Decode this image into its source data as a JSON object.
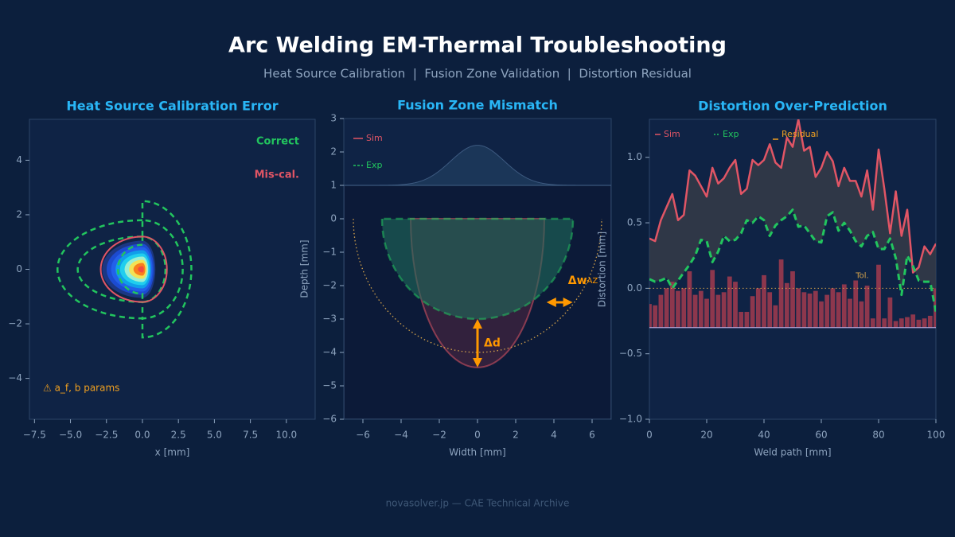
{
  "title": "Arc Welding EM-Thermal Troubleshooting",
  "subtitle": "Heat Source Calibration  |  Fusion Zone Validation  |  Distortion Residual",
  "footer": "novasolver.jp  —  CAE Technical Archive",
  "chart_data": [
    {
      "type": "contour",
      "title": "Heat Source Calibration Error",
      "xlabel": "x [mm]",
      "xlim": [
        -7.85,
        12
      ],
      "ylim": [
        -5.5,
        5.5
      ],
      "xticks": [
        {
          "value": -7.5,
          "label": "−7.5"
        },
        {
          "value": -5,
          "label": "−5.0"
        },
        {
          "value": -2.5,
          "label": "−2.5"
        },
        {
          "value": 0,
          "label": "0.0"
        },
        2.5,
        {
          "value": 5,
          "label": "5.0"
        },
        7.5,
        {
          "value": 10,
          "label": "10.0"
        }
      ],
      "yticks": [
        {
          "value": -4,
          "label": "−4"
        },
        {
          "value": -2,
          "label": "−2"
        },
        0,
        2,
        4
      ],
      "field": {
        "x_rear": -2.8,
        "x_front": 0.9,
        "y": 1.05,
        "colors": [
          "#1e3a8a",
          "#1d4ed8",
          "#2563eb",
          "#0ea5e9",
          "#22d3ee",
          "#a7f3d0",
          "#fde047",
          "#f97316",
          "#ef4444"
        ]
      },
      "series": [
        {
          "name": "Correct",
          "color": "#22c55e",
          "dashed": true,
          "contours": [
            {
              "x_rear": -5.9,
              "x_front": 3.4,
              "y_rear": 1.8,
              "y_front": 2.5
            },
            {
              "x_rear": -4.5,
              "x_front": 2.8,
              "y_rear": 1.2,
              "y_front": 1.8
            },
            {
              "x_rear": -1.7,
              "x_front": 1.6,
              "y_rear": 0.9,
              "y_front": 1.2
            }
          ]
        },
        {
          "name": "Mis-cal.",
          "color": "#e05565",
          "dashed": false,
          "contours": [
            {
              "x_rear": -2.9,
              "x_front": 1.7,
              "y_rear": 1.2,
              "y_front": 1.2
            }
          ]
        }
      ],
      "annotation": "⚠ a_f, b params"
    },
    {
      "type": "weld-pool",
      "title": "Fusion Zone Mismatch",
      "xlabel": "Width [mm]",
      "ylabel": "Depth [mm]",
      "xlim": [
        -7,
        7
      ],
      "ylim": [
        -6,
        3
      ],
      "xticks": [
        {
          "value": -6,
          "label": "−6"
        },
        {
          "value": -4,
          "label": "−4"
        },
        {
          "value": -2,
          "label": "−2"
        },
        0,
        2,
        4,
        6
      ],
      "yticks": [
        {
          "value": -6,
          "label": "−6"
        },
        {
          "value": -5,
          "label": "−5"
        },
        {
          "value": -4,
          "label": "−4"
        },
        {
          "value": -3,
          "label": "−3"
        },
        {
          "value": -2,
          "label": "−2"
        },
        {
          "value": -1,
          "label": "−1"
        },
        0,
        1,
        2,
        3
      ],
      "surface": 1,
      "flux": {
        "peak": 2.2,
        "sigma": 1.4
      },
      "series": [
        {
          "name": "Sim",
          "color": "#e05565",
          "half_width": 3.5,
          "depth": -4.45
        },
        {
          "name": "Exp",
          "color": "#22c55e",
          "half_width": 5,
          "depth": -3.0
        }
      ],
      "haz": {
        "color": "#d4a24a",
        "half_width": 6.5,
        "depth": -4.0
      },
      "annotations": [
        {
          "text": "Δd"
        },
        {
          "text": "Δw",
          "sub": "AZ",
          "x": [
            3.7,
            4.9
          ],
          "y": -2.5
        }
      ]
    },
    {
      "type": "line",
      "title": "Distortion Over-Prediction",
      "xlabel": "Weld path [mm]",
      "ylabel": "Distortion [mm]",
      "xlim": [
        0,
        100
      ],
      "ylim": [
        -1,
        1.29
      ],
      "xticks": [
        0,
        20,
        40,
        60,
        80,
        100
      ],
      "yticks": [
        {
          "value": -1,
          "label": "−1.0"
        },
        {
          "value": -0.5,
          "label": "−0.5"
        },
        {
          "value": 0,
          "label": "0.0"
        },
        0.5,
        {
          "value": 1,
          "label": "1.0"
        }
      ],
      "x": [
        0,
        2,
        4,
        6,
        8,
        10,
        12,
        14,
        16,
        18,
        20,
        22,
        24,
        26,
        28,
        30,
        32,
        34,
        36,
        38,
        40,
        42,
        44,
        46,
        48,
        50,
        52,
        54,
        56,
        58,
        60,
        62,
        64,
        66,
        68,
        70,
        72,
        74,
        76,
        78,
        80,
        82,
        84,
        86,
        88,
        90,
        92,
        94,
        96,
        98,
        100
      ],
      "series": [
        {
          "name": "Sim",
          "color": "#e05565",
          "values": [
            0.38,
            0.36,
            0.52,
            0.62,
            0.72,
            0.52,
            0.56,
            0.9,
            0.86,
            0.78,
            0.7,
            0.92,
            0.8,
            0.84,
            0.92,
            0.98,
            0.72,
            0.76,
            0.98,
            0.94,
            0.98,
            1.1,
            0.96,
            0.92,
            1.15,
            1.08,
            1.29,
            1.05,
            1.08,
            0.85,
            0.92,
            1.04,
            0.97,
            0.78,
            0.92,
            0.82,
            0.82,
            0.7,
            0.9,
            0.6,
            1.06,
            0.76,
            0.42,
            0.74,
            0.4,
            0.6,
            0.12,
            0.16,
            0.32,
            0.26,
            0.34
          ]
        },
        {
          "name": "Exp",
          "color": "#22c55e",
          "values": [
            0.07,
            0.05,
            0.06,
            0.08,
            0.0,
            0.06,
            0.12,
            0.18,
            0.25,
            0.37,
            0.36,
            0.2,
            0.28,
            0.4,
            0.36,
            0.37,
            0.42,
            0.52,
            0.5,
            0.55,
            0.52,
            0.4,
            0.48,
            0.52,
            0.55,
            0.6,
            0.47,
            0.48,
            0.42,
            0.36,
            0.35,
            0.55,
            0.58,
            0.44,
            0.5,
            0.44,
            0.36,
            0.32,
            0.4,
            0.43,
            0.3,
            0.3,
            0.38,
            0.23,
            -0.05,
            0.25,
            0.17,
            0.06,
            0.05,
            0.05,
            -0.18
          ]
        }
      ],
      "residual": {
        "name": "Residual",
        "color": "#f0a020",
        "bar_color": "#9b3a4e",
        "base": -0.3,
        "values": [
          -0.12,
          -0.13,
          -0.05,
          0.0,
          0.05,
          -0.02,
          0.0,
          0.13,
          -0.05,
          -0.02,
          -0.08,
          0.14,
          -0.05,
          -0.03,
          0.09,
          0.05,
          -0.18,
          -0.18,
          -0.06,
          0.0,
          0.1,
          -0.03,
          -0.13,
          0.22,
          0.04,
          0.13,
          0.0,
          -0.03,
          -0.04,
          -0.02,
          -0.1,
          -0.05,
          0.0,
          -0.03,
          0.03,
          -0.08,
          0.06,
          -0.1,
          0.02,
          -0.23,
          0.18,
          -0.23,
          -0.07,
          -0.25,
          -0.23,
          -0.22,
          -0.2,
          -0.24,
          -0.23,
          -0.21,
          0.0
        ]
      },
      "tolerance": {
        "label": "Tol.",
        "value": 0,
        "color": "#d4a24a"
      }
    }
  ]
}
